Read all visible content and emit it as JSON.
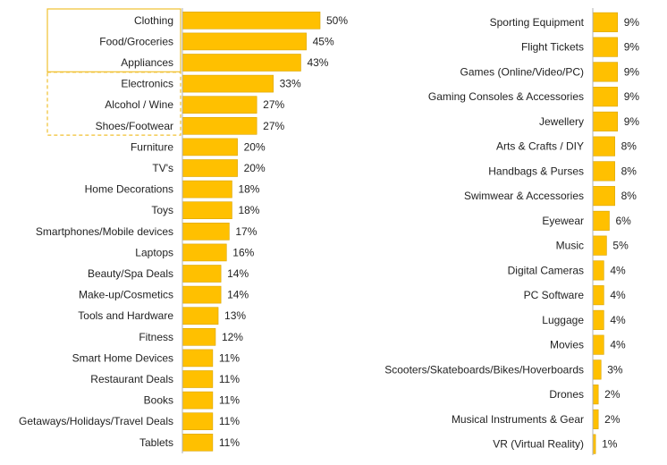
{
  "colors": {
    "bar": "#FFC000",
    "highlight_box": "#F0C030",
    "axis": "#B0B0B0",
    "text": "#222222"
  },
  "chart_data": [
    {
      "type": "bar",
      "orientation": "horizontal",
      "value_suffix": "%",
      "xlim": [
        0,
        50
      ],
      "grid": false,
      "categories": [
        "Clothing",
        "Food/Groceries",
        "Appliances",
        "Electronics",
        "Alcohol / Wine",
        "Shoes/Footwear",
        "Furniture",
        "TV's",
        "Home Decorations",
        "Toys",
        "Smartphones/Mobile devices",
        "Laptops",
        "Beauty/Spa Deals",
        "Make-up/Cosmetics",
        "Tools and Hardware",
        "Fitness",
        "Smart Home Devices",
        "Restaurant Deals",
        "Books",
        "Getaways/Holidays/Travel Deals",
        "Tablets"
      ],
      "values": [
        50,
        45,
        43,
        33,
        27,
        27,
        20,
        20,
        18,
        18,
        17,
        16,
        14,
        14,
        13,
        12,
        11,
        11,
        11,
        11,
        11
      ],
      "highlight_groups": [
        {
          "style": "solid",
          "categories": [
            "Clothing",
            "Food/Groceries",
            "Appliances"
          ]
        },
        {
          "style": "dashed",
          "categories": [
            "Electronics",
            "Alcohol / Wine",
            "Shoes/Footwear"
          ]
        }
      ]
    },
    {
      "type": "bar",
      "orientation": "horizontal",
      "value_suffix": "%",
      "xlim": [
        0,
        50
      ],
      "grid": false,
      "categories": [
        "Sporting Equipment",
        "Flight Tickets",
        "Games (Online/Video/PC)",
        "Gaming Consoles & Accessories",
        "Jewellery",
        "Arts & Crafts / DIY",
        "Handbags & Purses",
        "Swimwear & Accessories",
        "Eyewear",
        "Music",
        "Digital Cameras",
        "PC Software",
        "Luggage",
        "Movies",
        "Scooters/Skateboards/Bikes/Hoverboards",
        "Drones",
        "Musical Instruments & Gear",
        "VR (Virtual Reality)"
      ],
      "values": [
        9,
        9,
        9,
        9,
        9,
        8,
        8,
        8,
        6,
        5,
        4,
        4,
        4,
        4,
        3,
        2,
        2,
        1
      ]
    }
  ]
}
